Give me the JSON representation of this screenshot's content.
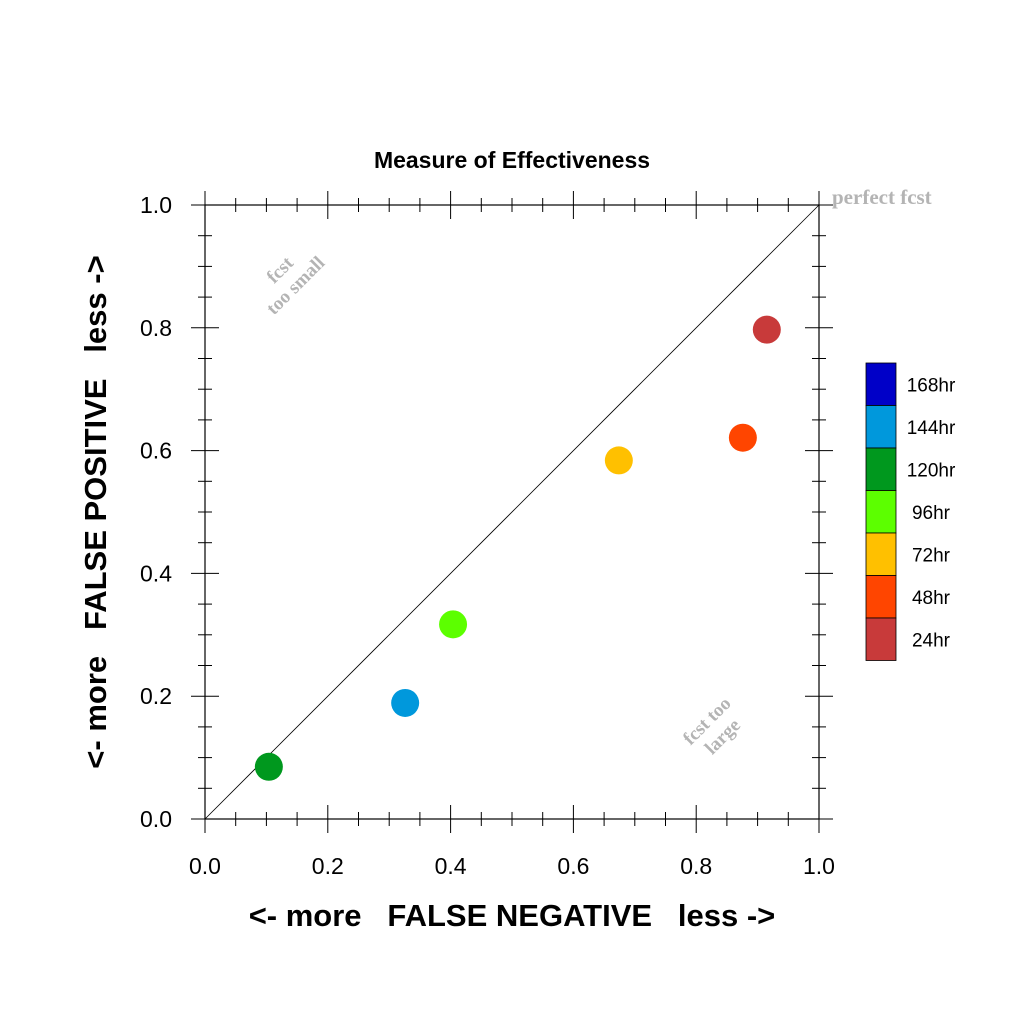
{
  "chart_data": {
    "type": "scatter",
    "title": "Measure of Effectiveness",
    "xlabel": "<- more   FALSE NEGATIVE   less ->",
    "ylabel": "<- more   FALSE POSITIVE   less ->",
    "xlim": [
      0.0,
      1.0
    ],
    "ylim": [
      0.0,
      1.0
    ],
    "xticks": [
      "0.0",
      "0.2",
      "0.4",
      "0.6",
      "0.8",
      "1.0"
    ],
    "yticks": [
      "0.0",
      "0.2",
      "0.4",
      "0.6",
      "0.8",
      "1.0"
    ],
    "grid": false,
    "reference_line": "diagonal from (0,0) to (1,1)",
    "annotations": {
      "perfect": "perfect fcst",
      "small_line1": "fcst",
      "small_line2": "too small",
      "large_line1": "fcst too",
      "large_line2": "large"
    },
    "legend_position": "right",
    "points": [
      {
        "label": "24hr",
        "x": 0.915,
        "y": 0.797,
        "color": "#c83a3a"
      },
      {
        "label": "48hr",
        "x": 0.876,
        "y": 0.621,
        "color": "#ff4500"
      },
      {
        "label": "72hr",
        "x": 0.674,
        "y": 0.584,
        "color": "#ffc000"
      },
      {
        "label": "96hr",
        "x": 0.404,
        "y": 0.317,
        "color": "#5cff00"
      },
      {
        "label": "120hr",
        "x": 0.104,
        "y": 0.085,
        "color": "#00981e"
      },
      {
        "label": "144hr",
        "x": 0.326,
        "y": 0.189,
        "color": "#0098dc"
      }
    ],
    "legend": [
      {
        "label": "168hr",
        "color": "#0000c8"
      },
      {
        "label": "144hr",
        "color": "#0098dc"
      },
      {
        "label": "120hr",
        "color": "#00981e"
      },
      {
        "label": "96hr",
        "color": "#5cff00"
      },
      {
        "label": "72hr",
        "color": "#ffc000"
      },
      {
        "label": "48hr",
        "color": "#ff4500"
      },
      {
        "label": "24hr",
        "color": "#c83a3a"
      }
    ]
  }
}
